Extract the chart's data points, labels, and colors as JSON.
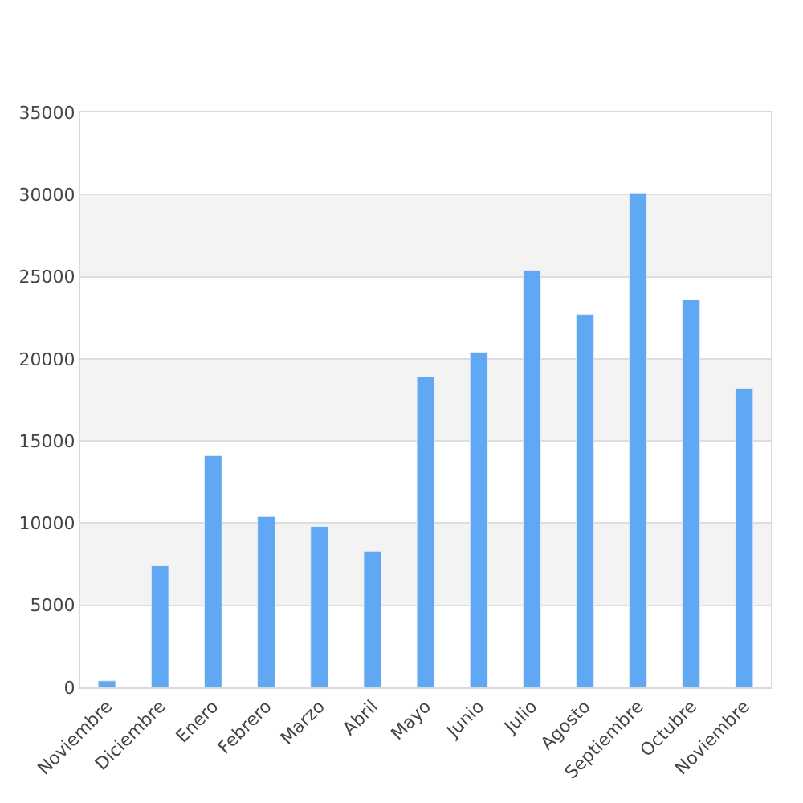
{
  "chart_data": {
    "type": "bar",
    "categories": [
      "Noviembre",
      "Diciembre",
      "Enero",
      "Febrero",
      "Marzo",
      "Abril",
      "Mayo",
      "Junio",
      "Julio",
      "Agosto",
      "Septiembre",
      "Octubre",
      "Noviembre"
    ],
    "values": [
      400,
      7400,
      14100,
      10400,
      9800,
      8300,
      18900,
      20400,
      25400,
      22700,
      30100,
      23600,
      18200
    ],
    "color": "#60a8f4",
    "ylim": [
      0,
      35000
    ],
    "yticks": [
      0,
      5000,
      10000,
      15000,
      20000,
      25000,
      30000,
      35000
    ],
    "grid": "y",
    "legend": false,
    "bands": [
      {
        "axis": "y",
        "from": 5000,
        "to": 10000,
        "color": "#f3f3f3"
      },
      {
        "axis": "y",
        "from": 15000,
        "to": 20000,
        "color": "#f3f3f3"
      },
      {
        "axis": "y",
        "from": 25000,
        "to": 30000,
        "color": "#f3f3f3"
      }
    ]
  }
}
